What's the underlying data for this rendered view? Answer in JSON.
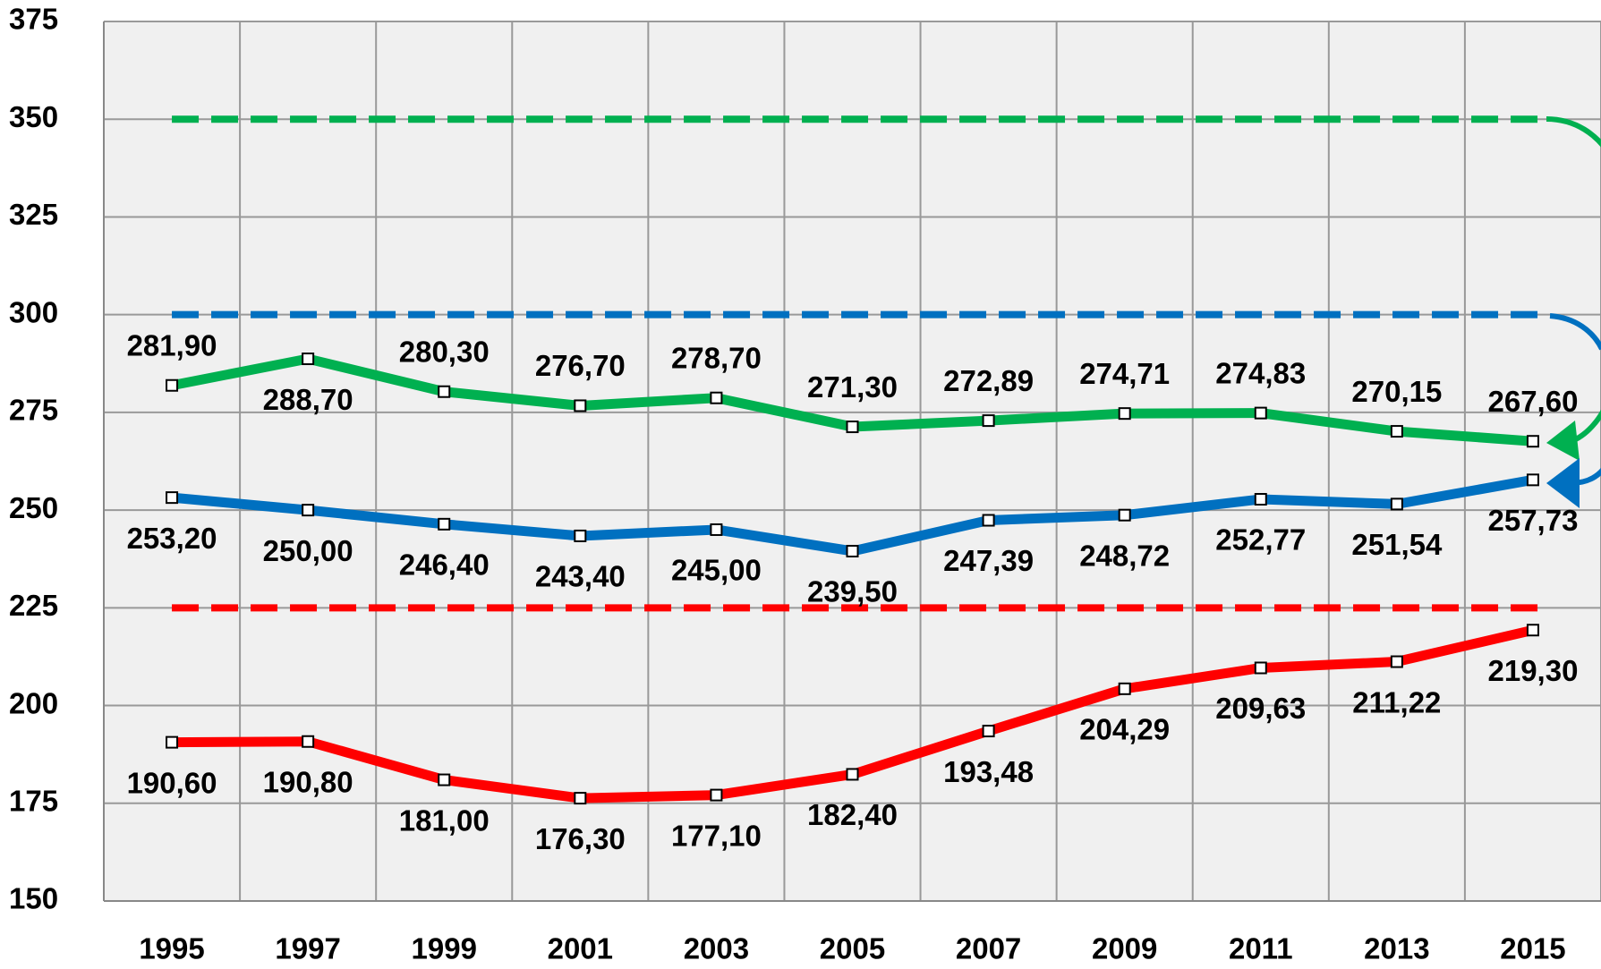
{
  "chart_data": {
    "type": "line",
    "categories": [
      "1995",
      "1997",
      "1999",
      "2001",
      "2003",
      "2005",
      "2007",
      "2009",
      "2011",
      "2013",
      "2015"
    ],
    "series": [
      {
        "color": "#00b050",
        "values": [
          281.9,
          288.7,
          280.3,
          276.7,
          278.7,
          271.3,
          272.89,
          274.71,
          274.83,
          270.15,
          267.6
        ],
        "value_labels": [
          "281,90",
          "288,70",
          "280,30",
          "276,70",
          "278,70",
          "271,30",
          "272,89",
          "274,71",
          "274,83",
          "270,15",
          "267,60"
        ]
      },
      {
        "color": "#0070c0",
        "values": [
          253.2,
          250.0,
          246.4,
          243.4,
          245.0,
          239.5,
          247.39,
          248.72,
          252.77,
          251.54,
          257.73
        ],
        "value_labels": [
          "253,20",
          "250,00",
          "246,40",
          "243,40",
          "245,00",
          "239,50",
          "247,39",
          "248,72",
          "252,77",
          "251,54",
          "257,73"
        ]
      },
      {
        "color": "#ff0000",
        "values": [
          190.6,
          190.8,
          181.0,
          176.3,
          177.1,
          182.4,
          193.48,
          204.29,
          209.63,
          211.22,
          219.3
        ],
        "value_labels": [
          "190,60",
          "190,80",
          "181,00",
          "176,30",
          "177,10",
          "182,40",
          "193,48",
          "204,29",
          "209,63",
          "211,22",
          "219,30"
        ]
      }
    ],
    "reference_lines": [
      {
        "value": 350,
        "color": "#00b050"
      },
      {
        "value": 300,
        "color": "#0070c0"
      },
      {
        "value": 225,
        "color": "#ff0000"
      }
    ],
    "ylim": [
      150,
      375
    ],
    "yticks": [
      150,
      175,
      200,
      225,
      250,
      275,
      300,
      325,
      350,
      375
    ],
    "grid": true
  }
}
